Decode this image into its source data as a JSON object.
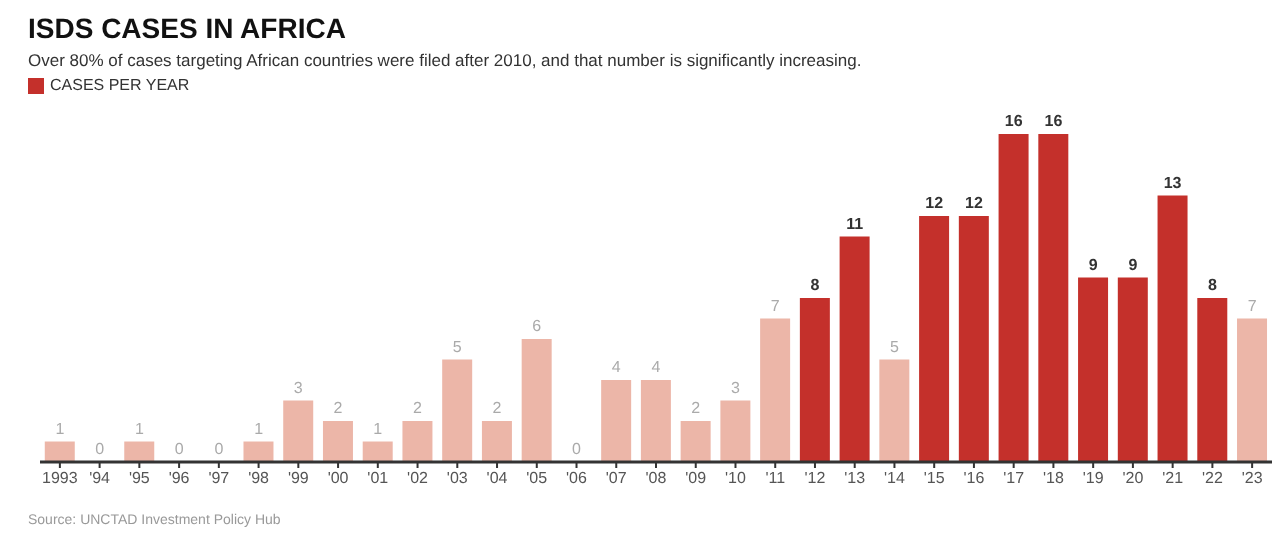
{
  "chart_data": {
    "type": "bar",
    "title": "ISDS CASES IN AFRICA",
    "subtitle": "Over 80% of cases targeting African countries were filed after 2010, and that number is significantly increasing.",
    "categories": [
      "1993",
      "'94",
      "'95",
      "'96",
      "'97",
      "'98",
      "'99",
      "'00",
      "'01",
      "'02",
      "'03",
      "'04",
      "'05",
      "'06",
      "'07",
      "'08",
      "'09",
      "'10",
      "'11",
      "'12",
      "'13",
      "'14",
      "'15",
      "'16",
      "'17",
      "'18",
      "'19",
      "'20",
      "'21",
      "'22",
      "'23"
    ],
    "series": [
      {
        "name": "CASES PER YEAR",
        "color": "#c4302b",
        "values": [
          1,
          0,
          1,
          0,
          0,
          1,
          3,
          2,
          1,
          2,
          5,
          2,
          6,
          0,
          4,
          4,
          2,
          3,
          7,
          8,
          11,
          5,
          12,
          12,
          16,
          16,
          9,
          9,
          13,
          8,
          7
        ],
        "colors": [
          "#ecb6a8",
          "#ecb6a8",
          "#ecb6a8",
          "#ecb6a8",
          "#ecb6a8",
          "#ecb6a8",
          "#ecb6a8",
          "#ecb6a8",
          "#ecb6a8",
          "#ecb6a8",
          "#ecb6a8",
          "#ecb6a8",
          "#ecb6a8",
          "#ecb6a8",
          "#ecb6a8",
          "#ecb6a8",
          "#ecb6a8",
          "#ecb6a8",
          "#ecb6a8",
          "#c4302b",
          "#c4302b",
          "#ecb6a8",
          "#c4302b",
          "#c4302b",
          "#c4302b",
          "#c4302b",
          "#c4302b",
          "#c4302b",
          "#c4302b",
          "#c4302b",
          "#ecb6a8"
        ]
      }
    ],
    "data_labels": true,
    "legend": "top left",
    "grid": false,
    "annotations": [
      "Source: UNCTAD Investment Policy Hub"
    ]
  }
}
